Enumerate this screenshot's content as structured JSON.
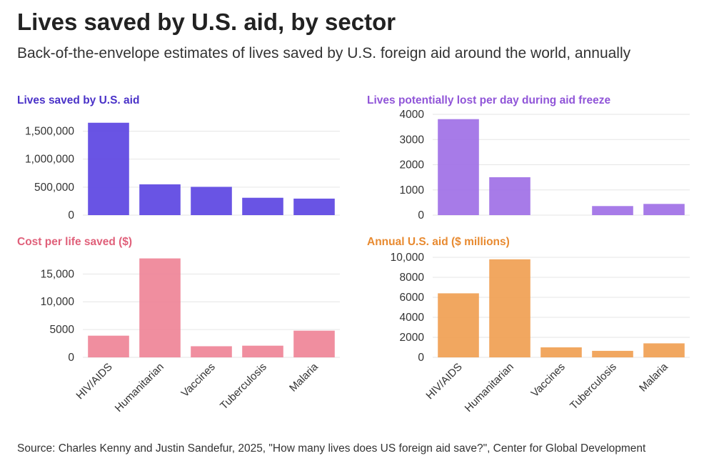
{
  "title": "Lives saved by U.S. aid, by sector",
  "subtitle": "Back-of-the-envelope estimates of lives saved by U.S. foreign aid around the world, annually",
  "source": "Source: Charles Kenny and Justin Sandefur, 2025, \"How many lives does US foreign aid save?\", Center for Global Development",
  "chart_data": [
    {
      "type": "bar",
      "title": "Lives saved by U.S. aid",
      "color": "#5c45e2",
      "categories": [
        "HIV/AIDS",
        "Humanitarian",
        "Vaccines",
        "Tuberculosis",
        "Malaria"
      ],
      "values": [
        1650000,
        550000,
        505000,
        310000,
        295000
      ],
      "ylim": [
        0,
        1800000
      ],
      "yticks": [
        0,
        500000,
        1000000,
        1500000
      ],
      "ytick_labels": [
        "0",
        "500,000",
        "1,000,000",
        "1,500,000"
      ],
      "grid": true,
      "show_x_labels": false
    },
    {
      "type": "bar",
      "title": "Lives potentially lost per day during aid freeze",
      "color": "#a070e6",
      "categories": [
        "HIV/AIDS",
        "Humanitarian",
        "Vaccines",
        "Tuberculosis",
        "Malaria"
      ],
      "values": [
        3810,
        1505,
        0,
        360,
        445
      ],
      "ylim": [
        0,
        4000
      ],
      "yticks": [
        0,
        1000,
        2000,
        3000,
        4000
      ],
      "ytick_labels": [
        "0",
        "1000",
        "2000",
        "3000",
        "4000"
      ],
      "grid": true,
      "show_x_labels": false
    },
    {
      "type": "bar",
      "title": "Cost per life saved ($)",
      "color": "#ef8497",
      "categories": [
        "HIV/AIDS",
        "Humanitarian",
        "Vaccines",
        "Tuberculosis",
        "Malaria"
      ],
      "values": [
        3900,
        17800,
        2000,
        2100,
        4800
      ],
      "ylim": [
        0,
        18000
      ],
      "yticks": [
        0,
        5000,
        10000,
        15000
      ],
      "ytick_labels": [
        "0",
        "5000",
        "10,000",
        "15,000"
      ],
      "grid": true,
      "show_x_labels": true
    },
    {
      "type": "bar",
      "title": "Annual U.S. aid ($ millions)",
      "color": "#f0a052",
      "categories": [
        "HIV/AIDS",
        "Humanitarian",
        "Vaccines",
        "Tuberculosis",
        "Malaria"
      ],
      "values": [
        6400,
        9800,
        1000,
        650,
        1400
      ],
      "ylim": [
        0,
        10000
      ],
      "yticks": [
        0,
        2000,
        4000,
        6000,
        8000,
        10000
      ],
      "ytick_labels": [
        "0",
        "2000",
        "4000",
        "6000",
        "8000",
        "10,000"
      ],
      "grid": true,
      "show_x_labels": true
    }
  ],
  "colors": {
    "panel_title_1": "#4a32c8",
    "panel_title_2": "#9055d8",
    "panel_title_3": "#e0607a",
    "panel_title_4": "#e88a30"
  }
}
